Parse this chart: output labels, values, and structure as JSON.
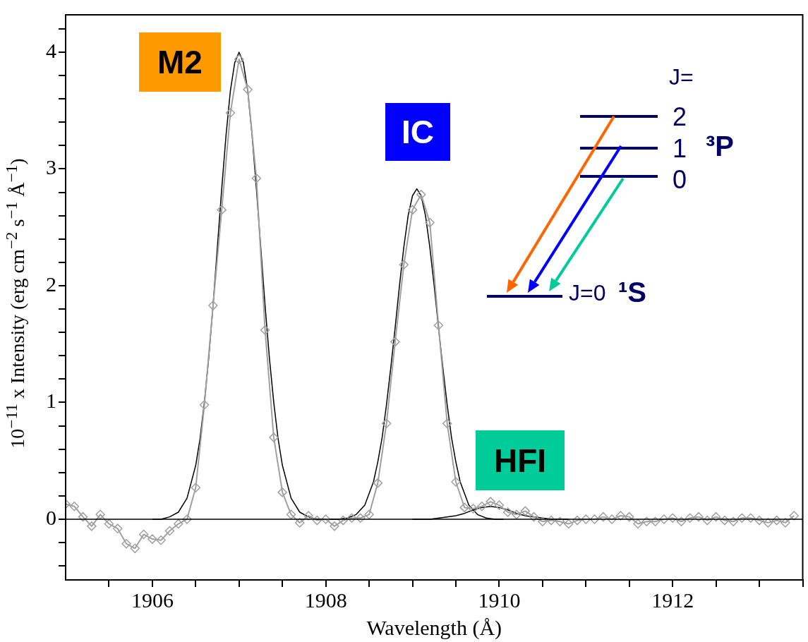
{
  "chart_data": {
    "type": "scatter",
    "xlabel": "Wavelength (Å)",
    "ylabel": "10$^{−11}$ x Intensity (erg cm$^{−2}$ s$^{−1}$ Å$^{−1}$)",
    "xlim": [
      1905,
      1913.5
    ],
    "ylim": [
      -0.52,
      4.32
    ],
    "xticks": [
      {
        "value": 1905.5,
        "label": null
      },
      1906,
      {
        "value": 1906.5,
        "label": null
      },
      {
        "value": 1907,
        "label": null
      },
      {
        "value": 1907.5,
        "label": null
      },
      1908,
      {
        "value": 1908.5,
        "label": null
      },
      {
        "value": 1909,
        "label": null
      },
      {
        "value": 1909.5,
        "label": null
      },
      1910,
      {
        "value": 1910.5,
        "label": null
      },
      {
        "value": 1911,
        "label": null
      },
      {
        "value": 1911.5,
        "label": null
      },
      1912,
      {
        "value": 1912.5,
        "label": null
      },
      {
        "value": 1913,
        "label": null
      },
      {
        "value": 1913.5,
        "label": null
      }
    ],
    "yticks": [
      {
        "value": -0.4,
        "label": null
      },
      {
        "value": -0.2,
        "label": null
      },
      0,
      {
        "value": 0.2,
        "label": null
      },
      {
        "value": 0.4,
        "label": null
      },
      {
        "value": 0.6,
        "label": null
      },
      {
        "value": 0.8,
        "label": null
      },
      1,
      {
        "value": 1.2,
        "label": null
      },
      {
        "value": 1.4,
        "label": null
      },
      {
        "value": 1.6,
        "label": null
      },
      {
        "value": 1.8,
        "label": null
      },
      2,
      {
        "value": 2.2,
        "label": null
      },
      {
        "value": 2.4,
        "label": null
      },
      {
        "value": 2.6,
        "label": null
      },
      {
        "value": 2.8,
        "label": null
      },
      3,
      {
        "value": 3.2,
        "label": null
      },
      {
        "value": 3.4,
        "label": null
      },
      {
        "value": 3.6,
        "label": null
      },
      {
        "value": 3.8,
        "label": null
      },
      4,
      {
        "value": 4.2,
        "label": null
      }
    ],
    "grid": false,
    "legend": false,
    "ref_lines": [
      {
        "axis": "y",
        "value": 0,
        "color": "#000000"
      }
    ],
    "series": [
      {
        "type": "line",
        "marker": "diamond",
        "color": "#a0a0a0",
        "x": [
          1905.0,
          1905.1,
          1905.2,
          1905.3,
          1905.4,
          1905.5,
          1905.6,
          1905.7,
          1905.8,
          1905.9,
          1906.0,
          1906.1,
          1906.2,
          1906.3,
          1906.4,
          1906.5,
          1906.6,
          1906.7,
          1906.8,
          1906.9,
          1907.0,
          1907.1,
          1907.2,
          1907.3,
          1907.4,
          1907.5,
          1907.6,
          1907.7,
          1907.8,
          1907.9,
          1908.0,
          1908.1,
          1908.2,
          1908.3,
          1908.4,
          1908.5,
          1908.6,
          1908.7,
          1908.8,
          1908.9,
          1909.0,
          1909.1,
          1909.2,
          1909.3,
          1909.4,
          1909.5,
          1909.6,
          1909.7,
          1909.8,
          1909.9,
          1910.0,
          1910.1,
          1910.2,
          1910.3,
          1910.4,
          1910.5,
          1910.6,
          1910.7,
          1910.8,
          1910.9,
          1911.0,
          1911.1,
          1911.2,
          1911.3,
          1911.4,
          1911.5,
          1911.6,
          1911.7,
          1911.8,
          1911.9,
          1912.0,
          1912.1,
          1912.2,
          1912.3,
          1912.4,
          1912.5,
          1912.6,
          1912.7,
          1912.8,
          1912.9,
          1913.0,
          1913.1,
          1913.2,
          1913.3,
          1913.4
        ],
        "values": [
          0.13,
          0.11,
          0.02,
          -0.06,
          0.04,
          -0.04,
          -0.08,
          -0.21,
          -0.25,
          -0.13,
          -0.17,
          -0.18,
          -0.1,
          -0.04,
          0.0,
          0.27,
          0.98,
          1.83,
          2.65,
          3.48,
          3.94,
          3.68,
          2.92,
          1.62,
          0.7,
          0.23,
          0.04,
          -0.03,
          0.03,
          -0.01,
          0.0,
          -0.06,
          -0.01,
          0.01,
          0.01,
          0.04,
          0.31,
          0.82,
          1.52,
          2.18,
          2.65,
          2.78,
          2.54,
          1.66,
          0.82,
          0.32,
          0.1,
          0.09,
          0.11,
          0.15,
          0.12,
          0.06,
          0.04,
          0.07,
          0.02,
          -0.02,
          -0.01,
          -0.02,
          -0.04,
          -0.01,
          0,
          0,
          0.02,
          0,
          0.03,
          0.02,
          -0.04,
          -0.02,
          -0.02,
          0,
          0.01,
          -0.02,
          0.01,
          0.02,
          -0.01,
          0.02,
          -0.01,
          -0.02,
          0.01,
          0.01,
          -0.01,
          -0.03,
          -0.01,
          -0.03,
          0.03
        ]
      },
      {
        "type": "line",
        "marker": "none",
        "color": "#000000",
        "x": [
          1906.0,
          1906.1,
          1906.2,
          1906.3,
          1906.4,
          1906.5,
          1906.55,
          1906.6,
          1906.65,
          1906.7,
          1906.75,
          1906.8,
          1906.85,
          1906.9,
          1906.95,
          1907.0,
          1907.05,
          1907.1,
          1907.15,
          1907.2,
          1907.25,
          1907.3,
          1907.35,
          1907.4,
          1907.45,
          1907.5,
          1907.6,
          1907.7,
          1907.8,
          1907.9,
          1908.0
        ],
        "values": [
          0.0,
          0.0,
          0.02,
          0.06,
          0.18,
          0.46,
          0.69,
          1.0,
          1.38,
          1.83,
          2.33,
          2.83,
          3.29,
          3.67,
          3.91,
          4.0,
          3.91,
          3.67,
          3.29,
          2.83,
          2.33,
          1.83,
          1.38,
          1.0,
          0.69,
          0.46,
          0.18,
          0.06,
          0.02,
          0.0,
          0.0
        ]
      },
      {
        "type": "line",
        "marker": "none",
        "color": "#000000",
        "x": [
          1908.05,
          1908.15,
          1908.25,
          1908.35,
          1908.45,
          1908.55,
          1908.6,
          1908.65,
          1908.7,
          1908.75,
          1908.8,
          1908.85,
          1908.9,
          1908.95,
          1909.0,
          1909.05,
          1909.1,
          1909.15,
          1909.2,
          1909.25,
          1909.3,
          1909.35,
          1909.4,
          1909.45,
          1909.5,
          1909.55,
          1909.65,
          1909.75,
          1909.85,
          1909.95,
          1910.05
        ],
        "values": [
          0.0,
          0.0,
          0.01,
          0.04,
          0.12,
          0.32,
          0.49,
          0.7,
          0.98,
          1.3,
          1.64,
          2.0,
          2.33,
          2.6,
          2.77,
          2.83,
          2.77,
          2.6,
          2.33,
          2.0,
          1.64,
          1.3,
          0.98,
          0.7,
          0.49,
          0.32,
          0.12,
          0.04,
          0.01,
          0.0,
          0.0
        ]
      },
      {
        "type": "line",
        "marker": "none",
        "color": "#000000",
        "x": [
          1909.0,
          1909.2,
          1909.4,
          1909.5,
          1909.6,
          1909.7,
          1909.8,
          1909.9,
          1910.0,
          1910.1,
          1910.2,
          1910.3,
          1910.4,
          1910.6,
          1910.8
        ],
        "values": [
          0.0,
          0.0,
          0.02,
          0.03,
          0.05,
          0.08,
          0.1,
          0.11,
          0.1,
          0.08,
          0.05,
          0.03,
          0.02,
          0.0,
          0.0
        ]
      }
    ],
    "annotations": [
      "M2",
      "IC",
      "HFI",
      "J=",
      "2",
      "1",
      "0",
      "³P",
      "J=0",
      "¹S"
    ]
  }
}
